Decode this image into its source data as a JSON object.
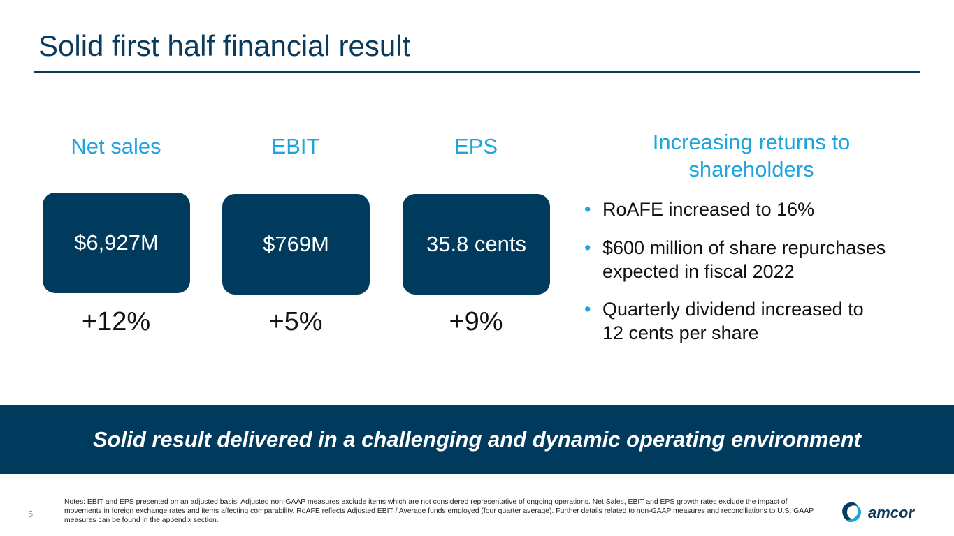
{
  "header": {
    "title": "Solid first half financial result"
  },
  "metrics": [
    {
      "label": "Net sales",
      "value": "$6,927M",
      "growth": "+12%"
    },
    {
      "label": "EBIT",
      "value": "$769M",
      "growth": "+5%"
    },
    {
      "label": "EPS",
      "value": "35.8 cents",
      "growth": "+9%"
    }
  ],
  "returns": {
    "heading": [
      "Increasing returns to",
      "shareholders"
    ],
    "bullet_symbol": "•",
    "bullets": [
      [
        "RoAFE increased to 16%"
      ],
      [
        "$600 million of share repurchases",
        "expected in fiscal 2022"
      ],
      [
        "Quarterly dividend increased to",
        "12 cents per share"
      ]
    ]
  },
  "banner": "Solid result delivered in a challenging and dynamic operating environment",
  "footer": {
    "page": "5",
    "notes": "Notes: EBIT and EPS presented on an adjusted basis.  Adjusted non-GAAP measures exclude items which are not considered representative of ongoing operations.    Net Sales, EBIT and EPS growth rates exclude the impact of movements in foreign exchange rates and items affecting comparability. RoAFE reflects Adjusted EBIT /  Average funds employed (four quarter average).  Further details related to non-GAAP measures and reconciliations to U.S. GAAP measures can be found in the appendix section.",
    "logo": "amcor"
  }
}
